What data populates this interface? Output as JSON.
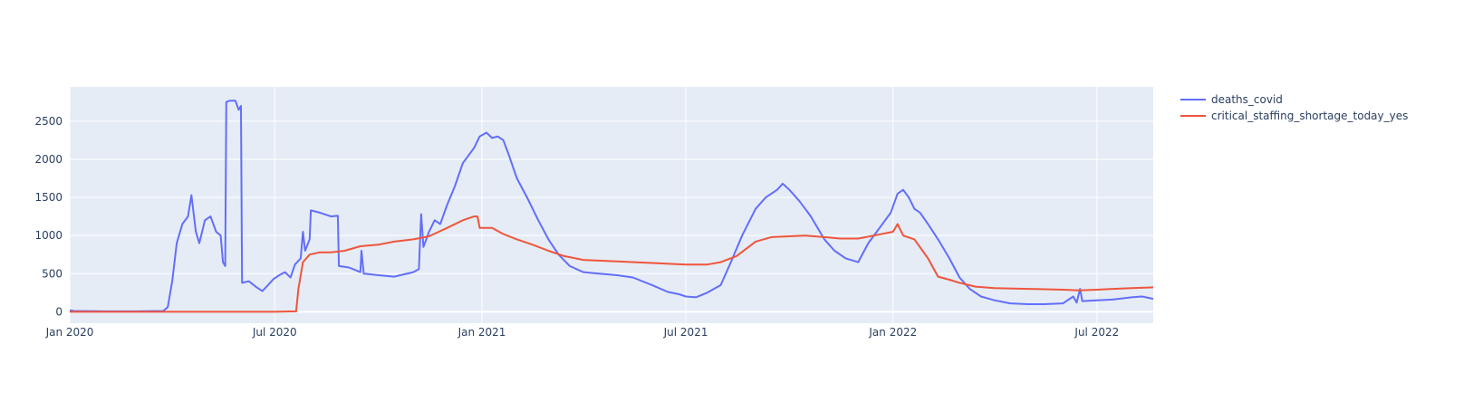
{
  "chart_data": {
    "type": "line",
    "title": "",
    "xlabel": "",
    "ylabel": "",
    "x_range": [
      "2020-01-01",
      "2022-08-20"
    ],
    "ylim": [
      -150,
      2950
    ],
    "y_ticks": [
      0,
      500,
      1000,
      1500,
      2000,
      2500
    ],
    "x_ticks": [
      {
        "date": "2020-01-01",
        "label": "Jan 2020"
      },
      {
        "date": "2020-07-01",
        "label": "Jul 2020"
      },
      {
        "date": "2021-01-01",
        "label": "Jan 2021"
      },
      {
        "date": "2021-07-01",
        "label": "Jul 2021"
      },
      {
        "date": "2022-01-01",
        "label": "Jan 2022"
      },
      {
        "date": "2022-07-01",
        "label": "Jul 2022"
      }
    ],
    "grid": true,
    "legend_position": "top-right",
    "colors": {
      "plot_bg": "#e5ecf6",
      "grid": "#ffffff",
      "tick_text": "#2a3f5f"
    },
    "series": [
      {
        "name": "deaths_covid",
        "color": "#636efa",
        "points": [
          [
            "2020-01-01",
            20
          ],
          [
            "2020-01-05",
            10
          ],
          [
            "2020-02-01",
            5
          ],
          [
            "2020-03-01",
            5
          ],
          [
            "2020-03-24",
            10
          ],
          [
            "2020-03-28",
            60
          ],
          [
            "2020-04-01",
            400
          ],
          [
            "2020-04-05",
            900
          ],
          [
            "2020-04-10",
            1150
          ],
          [
            "2020-04-15",
            1250
          ],
          [
            "2020-04-18",
            1530
          ],
          [
            "2020-04-22",
            1050
          ],
          [
            "2020-04-25",
            900
          ],
          [
            "2020-04-30",
            1200
          ],
          [
            "2020-05-05",
            1250
          ],
          [
            "2020-05-10",
            1050
          ],
          [
            "2020-05-14",
            1000
          ],
          [
            "2020-05-16",
            650
          ],
          [
            "2020-05-18",
            600
          ],
          [
            "2020-05-19",
            2750
          ],
          [
            "2020-05-22",
            2770
          ],
          [
            "2020-05-27",
            2770
          ],
          [
            "2020-05-30",
            2650
          ],
          [
            "2020-06-01",
            2700
          ],
          [
            "2020-06-02",
            380
          ],
          [
            "2020-06-08",
            400
          ],
          [
            "2020-06-15",
            320
          ],
          [
            "2020-06-20",
            270
          ],
          [
            "2020-06-25",
            350
          ],
          [
            "2020-06-30",
            430
          ],
          [
            "2020-07-05",
            480
          ],
          [
            "2020-07-10",
            520
          ],
          [
            "2020-07-15",
            450
          ],
          [
            "2020-07-19",
            620
          ],
          [
            "2020-07-24",
            700
          ],
          [
            "2020-07-26",
            1050
          ],
          [
            "2020-07-28",
            800
          ],
          [
            "2020-08-01",
            950
          ],
          [
            "2020-08-02",
            1330
          ],
          [
            "2020-08-10",
            1300
          ],
          [
            "2020-08-20",
            1250
          ],
          [
            "2020-08-26",
            1260
          ],
          [
            "2020-08-27",
            600
          ],
          [
            "2020-09-05",
            580
          ],
          [
            "2020-09-15",
            520
          ],
          [
            "2020-09-16",
            800
          ],
          [
            "2020-09-18",
            500
          ],
          [
            "2020-10-01",
            480
          ],
          [
            "2020-10-15",
            460
          ],
          [
            "2020-11-01",
            520
          ],
          [
            "2020-11-06",
            560
          ],
          [
            "2020-11-08",
            1280
          ],
          [
            "2020-11-10",
            850
          ],
          [
            "2020-11-15",
            1050
          ],
          [
            "2020-11-20",
            1200
          ],
          [
            "2020-11-25",
            1150
          ],
          [
            "2020-12-01",
            1400
          ],
          [
            "2020-12-08",
            1650
          ],
          [
            "2020-12-15",
            1950
          ],
          [
            "2020-12-20",
            2050
          ],
          [
            "2020-12-25",
            2150
          ],
          [
            "2020-12-30",
            2300
          ],
          [
            "2021-01-05",
            2350
          ],
          [
            "2021-01-10",
            2280
          ],
          [
            "2021-01-15",
            2300
          ],
          [
            "2021-01-20",
            2250
          ],
          [
            "2021-01-25",
            2050
          ],
          [
            "2021-02-01",
            1750
          ],
          [
            "2021-02-10",
            1500
          ],
          [
            "2021-02-20",
            1200
          ],
          [
            "2021-03-01",
            950
          ],
          [
            "2021-03-10",
            750
          ],
          [
            "2021-03-20",
            600
          ],
          [
            "2021-04-01",
            520
          ],
          [
            "2021-04-15",
            500
          ],
          [
            "2021-05-01",
            480
          ],
          [
            "2021-05-15",
            450
          ],
          [
            "2021-06-01",
            350
          ],
          [
            "2021-06-15",
            260
          ],
          [
            "2021-06-25",
            230
          ],
          [
            "2021-07-01",
            200
          ],
          [
            "2021-07-10",
            190
          ],
          [
            "2021-07-20",
            250
          ],
          [
            "2021-08-01",
            350
          ],
          [
            "2021-08-10",
            650
          ],
          [
            "2021-08-20",
            1000
          ],
          [
            "2021-09-01",
            1350
          ],
          [
            "2021-09-10",
            1500
          ],
          [
            "2021-09-20",
            1600
          ],
          [
            "2021-09-25",
            1680
          ],
          [
            "2021-10-01",
            1600
          ],
          [
            "2021-10-10",
            1450
          ],
          [
            "2021-10-20",
            1250
          ],
          [
            "2021-11-01",
            950
          ],
          [
            "2021-11-10",
            800
          ],
          [
            "2021-11-20",
            700
          ],
          [
            "2021-12-01",
            650
          ],
          [
            "2021-12-10",
            900
          ],
          [
            "2021-12-20",
            1100
          ],
          [
            "2021-12-30",
            1300
          ],
          [
            "2022-01-05",
            1550
          ],
          [
            "2022-01-10",
            1600
          ],
          [
            "2022-01-15",
            1500
          ],
          [
            "2022-01-20",
            1350
          ],
          [
            "2022-01-25",
            1300
          ],
          [
            "2022-02-01",
            1150
          ],
          [
            "2022-02-10",
            950
          ],
          [
            "2022-02-20",
            700
          ],
          [
            "2022-03-01",
            450
          ],
          [
            "2022-03-10",
            300
          ],
          [
            "2022-03-20",
            200
          ],
          [
            "2022-04-01",
            150
          ],
          [
            "2022-04-15",
            110
          ],
          [
            "2022-05-01",
            100
          ],
          [
            "2022-05-15",
            100
          ],
          [
            "2022-06-01",
            110
          ],
          [
            "2022-06-10",
            200
          ],
          [
            "2022-06-13",
            120
          ],
          [
            "2022-06-16",
            300
          ],
          [
            "2022-06-18",
            140
          ],
          [
            "2022-07-01",
            150
          ],
          [
            "2022-07-15",
            160
          ],
          [
            "2022-08-01",
            190
          ],
          [
            "2022-08-10",
            200
          ],
          [
            "2022-08-20",
            170
          ]
        ]
      },
      {
        "name": "critical_staffing_shortage_today_yes",
        "color": "#ef553b",
        "points": [
          [
            "2020-01-01",
            0
          ],
          [
            "2020-06-01",
            0
          ],
          [
            "2020-07-01",
            0
          ],
          [
            "2020-07-20",
            5
          ],
          [
            "2020-07-22",
            300
          ],
          [
            "2020-07-26",
            650
          ],
          [
            "2020-08-01",
            750
          ],
          [
            "2020-08-10",
            780
          ],
          [
            "2020-08-20",
            780
          ],
          [
            "2020-09-01",
            800
          ],
          [
            "2020-09-15",
            860
          ],
          [
            "2020-10-01",
            880
          ],
          [
            "2020-10-15",
            920
          ],
          [
            "2020-11-01",
            950
          ],
          [
            "2020-11-15",
            990
          ],
          [
            "2020-12-01",
            1100
          ],
          [
            "2020-12-15",
            1200
          ],
          [
            "2020-12-25",
            1250
          ],
          [
            "2020-12-28",
            1250
          ],
          [
            "2020-12-30",
            1100
          ],
          [
            "2021-01-10",
            1100
          ],
          [
            "2021-01-20",
            1020
          ],
          [
            "2021-02-01",
            950
          ],
          [
            "2021-02-15",
            880
          ],
          [
            "2021-03-01",
            800
          ],
          [
            "2021-03-15",
            730
          ],
          [
            "2021-04-01",
            680
          ],
          [
            "2021-05-01",
            660
          ],
          [
            "2021-06-01",
            640
          ],
          [
            "2021-07-01",
            620
          ],
          [
            "2021-07-20",
            620
          ],
          [
            "2021-08-01",
            650
          ],
          [
            "2021-08-15",
            730
          ],
          [
            "2021-09-01",
            920
          ],
          [
            "2021-09-15",
            980
          ],
          [
            "2021-10-01",
            990
          ],
          [
            "2021-10-15",
            1000
          ],
          [
            "2021-11-01",
            980
          ],
          [
            "2021-11-15",
            960
          ],
          [
            "2021-12-01",
            960
          ],
          [
            "2021-12-15",
            1000
          ],
          [
            "2022-01-01",
            1050
          ],
          [
            "2022-01-05",
            1150
          ],
          [
            "2022-01-10",
            1000
          ],
          [
            "2022-01-20",
            950
          ],
          [
            "2022-02-01",
            700
          ],
          [
            "2022-02-10",
            460
          ],
          [
            "2022-02-20",
            420
          ],
          [
            "2022-03-01",
            380
          ],
          [
            "2022-03-15",
            330
          ],
          [
            "2022-04-01",
            310
          ],
          [
            "2022-05-01",
            300
          ],
          [
            "2022-06-01",
            290
          ],
          [
            "2022-06-15",
            280
          ],
          [
            "2022-07-01",
            290
          ],
          [
            "2022-07-15",
            300
          ],
          [
            "2022-08-01",
            310
          ],
          [
            "2022-08-20",
            320
          ]
        ]
      }
    ]
  }
}
